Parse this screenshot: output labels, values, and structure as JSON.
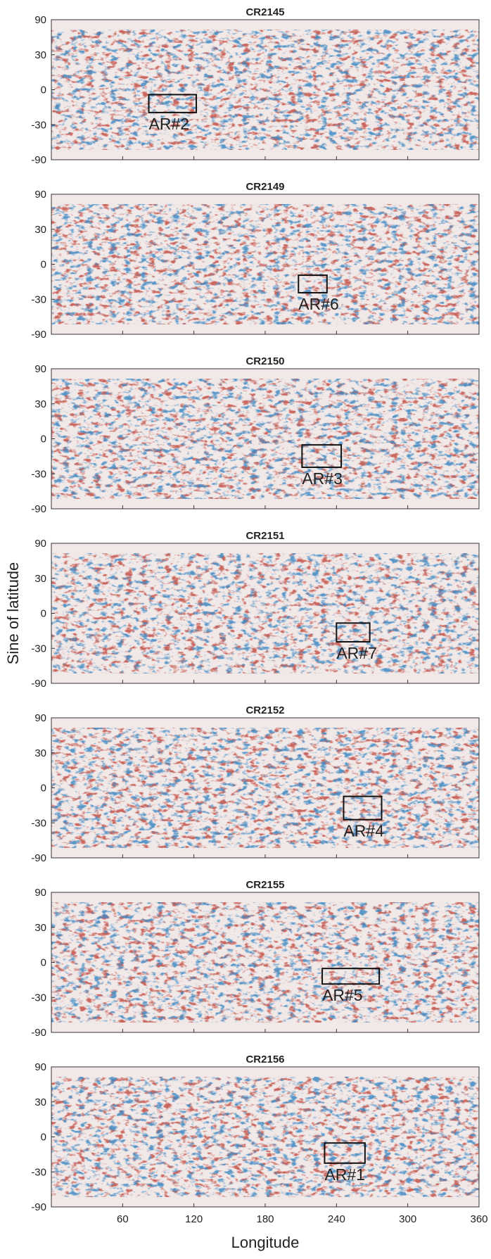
{
  "chart_data": [
    {
      "type": "heatmap",
      "title": "CR2145",
      "xlim": [
        0,
        360
      ],
      "xticks": [
        60,
        120,
        180,
        240,
        300,
        360
      ],
      "show_xticklabels": false,
      "ylim": [
        -90,
        90
      ],
      "yscale": "sine",
      "yticks": [
        90,
        30,
        0,
        -30,
        -90
      ],
      "annotations": [
        {
          "text": "AR#2",
          "x": [
            82,
            122
          ],
          "y": [
            -19,
            -4
          ]
        }
      ]
    },
    {
      "type": "heatmap",
      "title": "CR2149",
      "xlim": [
        0,
        360
      ],
      "xticks": [
        60,
        120,
        180,
        240,
        300,
        360
      ],
      "show_xticklabels": false,
      "ylim": [
        -90,
        90
      ],
      "yscale": "sine",
      "yticks": [
        90,
        30,
        0,
        -30,
        -90
      ],
      "annotations": [
        {
          "text": "AR#6",
          "x": [
            208,
            232
          ],
          "y": [
            -24,
            -9
          ]
        }
      ]
    },
    {
      "type": "heatmap",
      "title": "CR2150",
      "xlim": [
        0,
        360
      ],
      "xticks": [
        60,
        120,
        180,
        240,
        300,
        360
      ],
      "show_xticklabels": false,
      "ylim": [
        -90,
        90
      ],
      "yscale": "sine",
      "yticks": [
        90,
        30,
        0,
        -30,
        -90
      ],
      "annotations": [
        {
          "text": "AR#3",
          "x": [
            211,
            244
          ],
          "y": [
            -24,
            -5
          ]
        }
      ]
    },
    {
      "type": "heatmap",
      "title": "CR2151",
      "ylabel": "Sine of latitude",
      "xlim": [
        0,
        360
      ],
      "xticks": [
        60,
        120,
        180,
        240,
        300,
        360
      ],
      "show_xticklabels": false,
      "ylim": [
        -90,
        90
      ],
      "yscale": "sine",
      "yticks": [
        90,
        30,
        0,
        -30,
        -90
      ],
      "annotations": [
        {
          "text": "AR#7",
          "x": [
            240,
            268
          ],
          "y": [
            -24,
            -8
          ]
        }
      ]
    },
    {
      "type": "heatmap",
      "title": "CR2152",
      "xlim": [
        0,
        360
      ],
      "xticks": [
        60,
        120,
        180,
        240,
        300,
        360
      ],
      "show_xticklabels": false,
      "ylim": [
        -90,
        90
      ],
      "yscale": "sine",
      "yticks": [
        90,
        30,
        0,
        -30,
        -90
      ],
      "annotations": [
        {
          "text": "AR#4",
          "x": [
            246,
            278
          ],
          "y": [
            -27,
            -7
          ]
        }
      ]
    },
    {
      "type": "heatmap",
      "title": "CR2155",
      "xlim": [
        0,
        360
      ],
      "xticks": [
        60,
        120,
        180,
        240,
        300,
        360
      ],
      "show_xticklabels": false,
      "ylim": [
        -90,
        90
      ],
      "yscale": "sine",
      "yticks": [
        90,
        30,
        0,
        -30,
        -90
      ],
      "annotations": [
        {
          "text": "AR#5",
          "x": [
            228,
            276
          ],
          "y": [
            -18,
            -5
          ]
        }
      ]
    },
    {
      "type": "heatmap",
      "title": "CR2156",
      "xlabel": "Longitude",
      "xlim": [
        0,
        360
      ],
      "xticks": [
        60,
        120,
        180,
        240,
        300,
        360
      ],
      "show_xticklabels": true,
      "ylim": [
        -90,
        90
      ],
      "yscale": "sine",
      "yticks": [
        90,
        30,
        0,
        -30,
        -90
      ],
      "annotations": [
        {
          "text": "AR#1",
          "x": [
            230,
            264
          ],
          "y": [
            -22,
            -5
          ]
        }
      ]
    }
  ]
}
